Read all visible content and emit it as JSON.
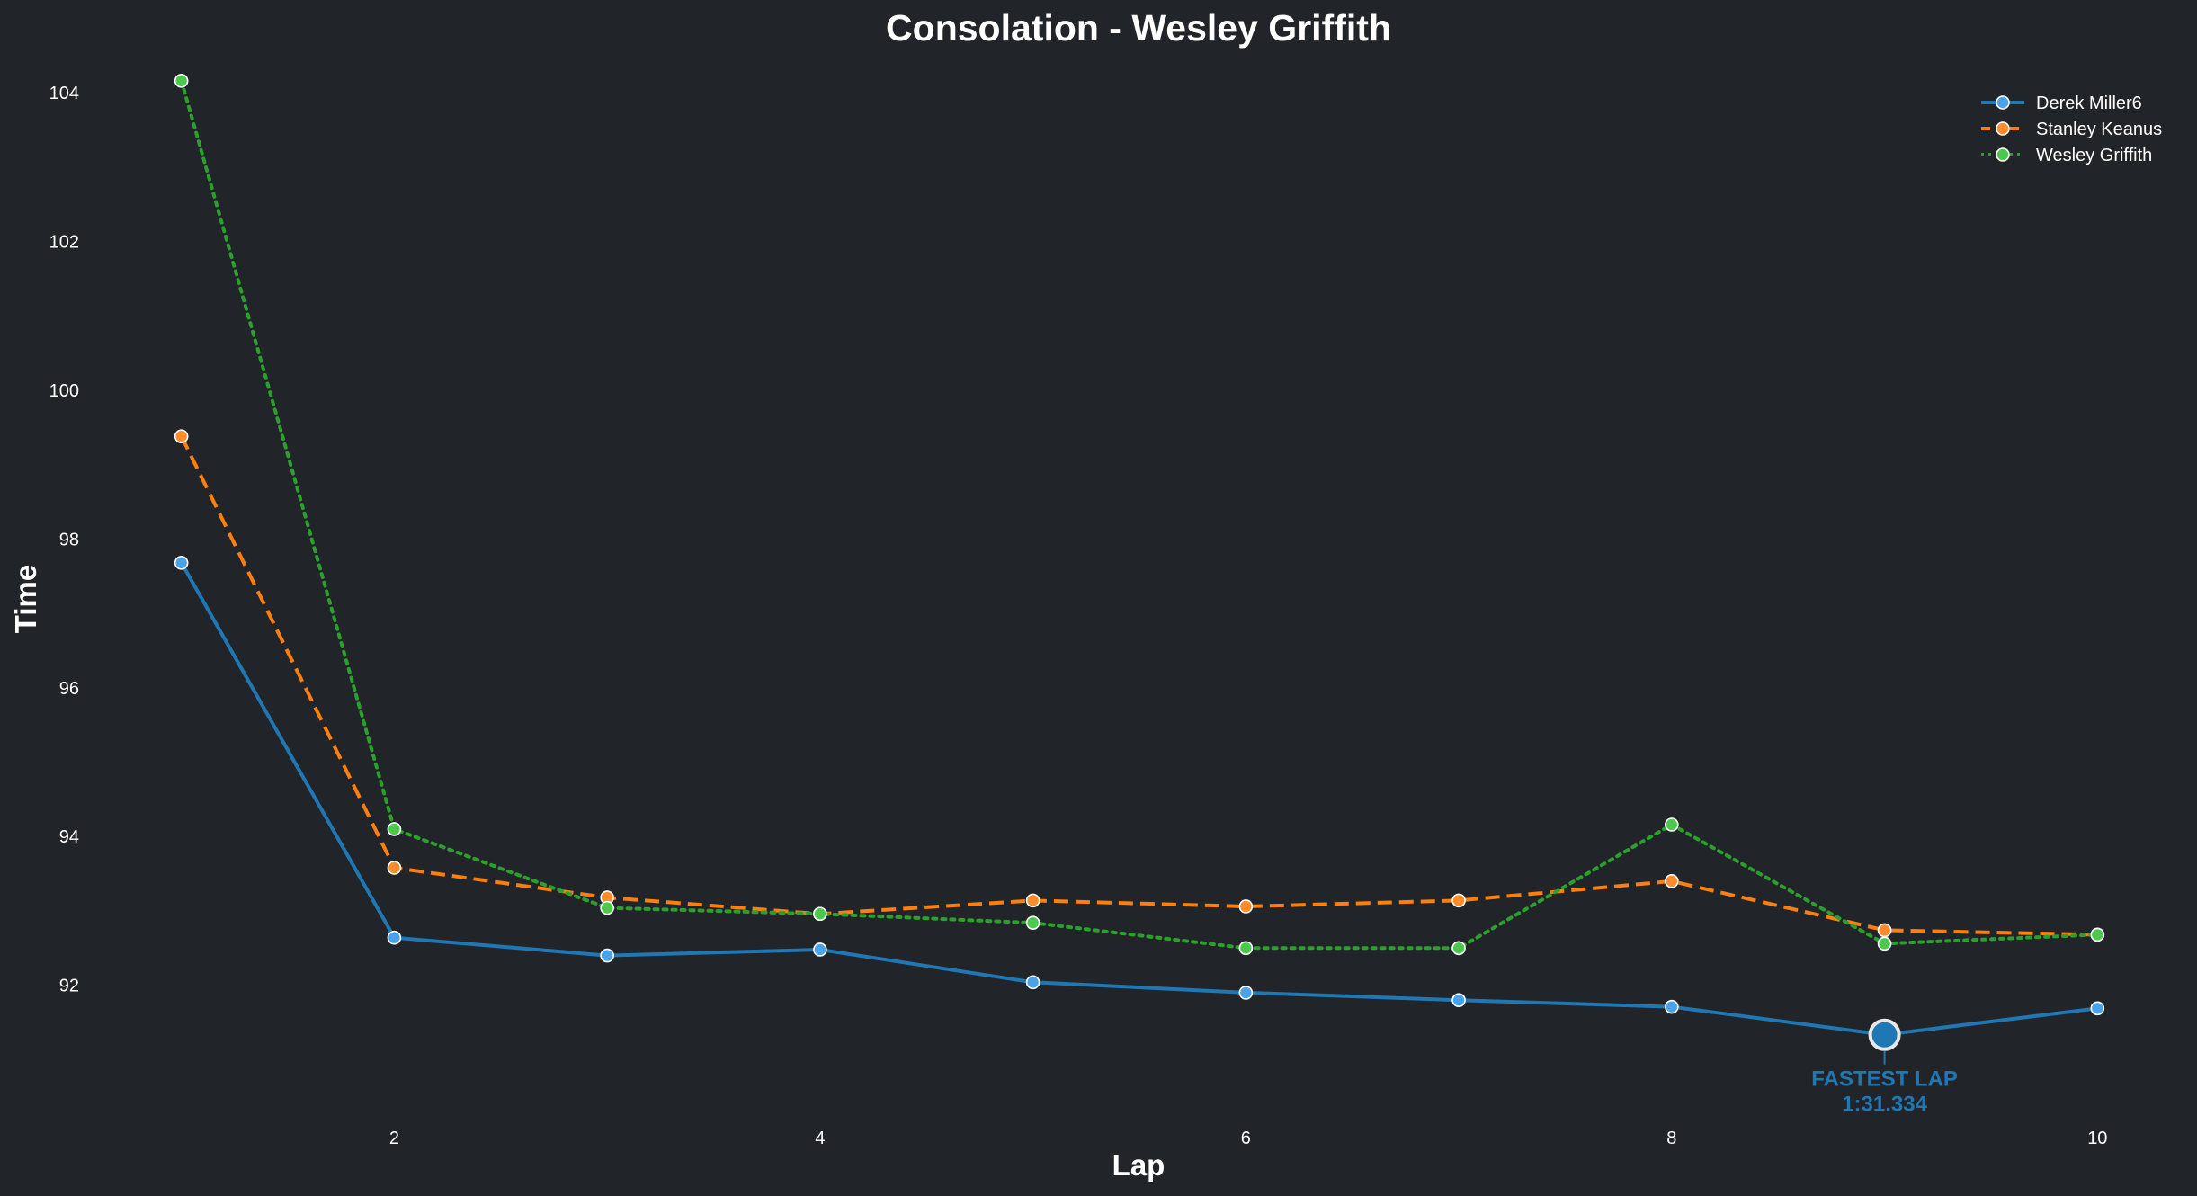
{
  "chart_data": {
    "type": "line",
    "title": "Consolation - Wesley Griffith",
    "xlabel": "Lap",
    "ylabel": "Time",
    "xlim": [
      0.9,
      10.1
    ],
    "ylim": [
      90.4,
      104.4
    ],
    "xticks": [
      2,
      4,
      6,
      8,
      10
    ],
    "yticks": [
      92,
      94,
      96,
      98,
      100,
      102,
      104
    ],
    "grid": false,
    "legend_position": "top-right",
    "x": [
      1,
      2,
      3,
      4,
      5,
      6,
      7,
      8,
      9,
      10
    ],
    "series": [
      {
        "name": "Derek Miller6",
        "color": "#1f77b4",
        "marker_color": "#4aa3e8",
        "line_style": "solid",
        "values": [
          97.68,
          92.64,
          92.4,
          92.48,
          92.04,
          91.9,
          91.8,
          91.71,
          91.334,
          91.69
        ]
      },
      {
        "name": "Stanley Keanus",
        "color": "#ff7f0e",
        "marker_color": "#ff8c2a",
        "line_style": "dashed",
        "values": [
          99.38,
          93.58,
          93.18,
          92.96,
          93.14,
          93.06,
          93.14,
          93.4,
          92.74,
          92.68
        ]
      },
      {
        "name": "Wesley Griffith",
        "color": "#2ca02c",
        "marker_color": "#4cc94c",
        "line_style": "dotted",
        "values": [
          104.16,
          94.1,
          93.04,
          92.96,
          92.84,
          92.5,
          92.5,
          94.16,
          92.56,
          92.68
        ]
      }
    ],
    "annotation": {
      "series": "Derek Miller6",
      "lap": 9,
      "value": 91.334,
      "line1": "FASTEST LAP",
      "line2": "1:31.334",
      "color": "#1f77b4"
    }
  }
}
